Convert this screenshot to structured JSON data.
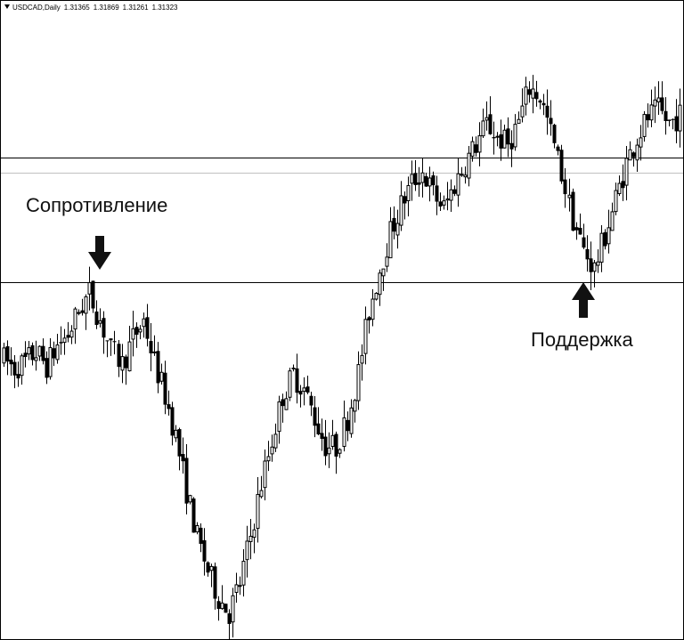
{
  "header": {
    "symbol": "USDCAD,Daily",
    "open": "1.31365",
    "high": "1.31869",
    "low": "1.31261",
    "close": "1.31323"
  },
  "annotations": {
    "resistance": "Сопротивление",
    "support": "Поддержка"
  },
  "colors": {
    "background": "#ffffff",
    "candles": "#000000",
    "level_lines": "#000000",
    "current_price_line": "#c0c0c0",
    "arrows": "#111111"
  },
  "chart_data": {
    "type": "candlestick",
    "symbol": "USDCAD",
    "timeframe": "Daily",
    "last_bar": {
      "open": 1.31365,
      "high": 1.31869,
      "low": 1.31261,
      "close": 1.31323
    },
    "horizontal_levels": [
      {
        "role": "resistance",
        "price": 1.3168
      },
      {
        "role": "support",
        "price": 1.303
      }
    ],
    "current_price": 1.3151,
    "ylim": [
      1.2635,
      1.3342
    ],
    "price_path": [
      1.2945,
      1.2935,
      1.2942,
      1.2953,
      1.2938,
      1.296,
      1.2972,
      1.2998,
      1.3018,
      1.2988,
      1.2955,
      1.294,
      1.2968,
      1.2988,
      1.2942,
      1.2905,
      1.286,
      1.28,
      1.2748,
      1.2712,
      1.2682,
      1.2665,
      1.2698,
      1.275,
      1.2808,
      1.2855,
      1.2905,
      1.2928,
      1.2912,
      1.288,
      1.285,
      1.2848,
      1.288,
      1.293,
      1.2998,
      1.3045,
      1.3085,
      1.3115,
      1.314,
      1.3152,
      1.3128,
      1.3112,
      1.3138,
      1.3162,
      1.3182,
      1.3205,
      1.319,
      1.3182,
      1.3208,
      1.3245,
      1.3235,
      1.3195,
      1.315,
      1.31,
      1.3065,
      1.3045,
      1.3082,
      1.3122,
      1.3162,
      1.319,
      1.3212,
      1.322,
      1.3205,
      1.3215
    ],
    "annotations": [
      "Сопротивление",
      "Поддержка"
    ]
  }
}
